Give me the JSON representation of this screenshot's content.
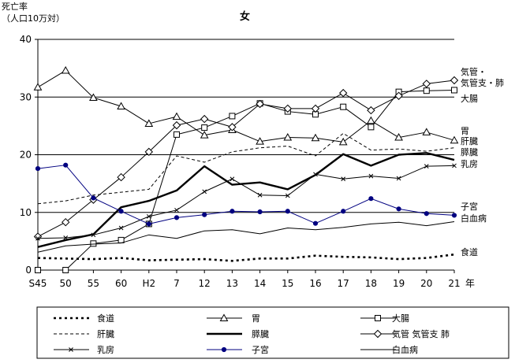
{
  "chart_data": {
    "type": "line",
    "title": "女",
    "ylabel_line1": "死亡率",
    "ylabel_line2": "（人口10万対）",
    "xlabel": "年",
    "ylim": [
      0,
      40
    ],
    "y_ticks": [
      0,
      10,
      20,
      30,
      40
    ],
    "categories": [
      "S45",
      "50",
      "55",
      "60",
      "H2",
      "7",
      "12",
      "13",
      "14",
      "15",
      "16",
      "17",
      "18",
      "19",
      "20",
      "21"
    ],
    "grid": "horizontal",
    "legend_position": "bottom",
    "series": [
      {
        "name": "食道",
        "end_label": "食道",
        "color": "#000000",
        "style": "dotted-bold",
        "marker": "none",
        "values": [
          2.1,
          2.0,
          1.9,
          2.1,
          1.7,
          1.8,
          1.9,
          1.6,
          2.0,
          2.0,
          2.5,
          2.3,
          2.2,
          1.9,
          2.1,
          2.7
        ]
      },
      {
        "name": "胃",
        "end_label": "胃",
        "color": "#000000",
        "style": "solid-thin",
        "marker": "triangle",
        "values": [
          31.7,
          34.6,
          29.9,
          28.4,
          25.4,
          26.6,
          23.4,
          24.3,
          22.3,
          23.0,
          22.9,
          22.2,
          25.9,
          23.0,
          23.9,
          22.5
        ]
      },
      {
        "name": "大腸",
        "end_label": "大腸",
        "color": "#000000",
        "style": "solid-thin",
        "marker": "square",
        "values": [
          0.0,
          0.0,
          4.6,
          5.2,
          8.0,
          23.5,
          24.7,
          26.7,
          28.9,
          27.5,
          27.0,
          28.3,
          24.8,
          30.9,
          31.1,
          31.2
        ]
      },
      {
        "name": "肝臓",
        "end_label": "肝臓",
        "color": "#000000",
        "style": "dashed",
        "marker": "none",
        "values": [
          11.5,
          12.0,
          13.0,
          13.5,
          14.0,
          19.8,
          18.7,
          20.5,
          21.2,
          21.5,
          19.8,
          23.7,
          20.8,
          21.0,
          20.6,
          21.2
        ]
      },
      {
        "name": "膵臓",
        "end_label": "膵臓",
        "color": "#000000",
        "style": "solid-bold",
        "marker": "none",
        "values": [
          4.0,
          5.2,
          6.2,
          10.9,
          12.0,
          13.8,
          18.0,
          14.8,
          15.2,
          14.0,
          16.5,
          20.1,
          18.1,
          20.0,
          20.3,
          19.1
        ]
      },
      {
        "name": "気管 気管支 肺",
        "end_label": "気管・気管支・肺",
        "color": "#000000",
        "style": "solid-thin",
        "marker": "diamond",
        "values": [
          5.8,
          8.3,
          12.2,
          16.1,
          20.5,
          25.1,
          26.2,
          24.8,
          28.8,
          28.0,
          28.0,
          30.7,
          27.7,
          30.2,
          32.3,
          32.9
        ]
      },
      {
        "name": "乳房",
        "end_label": "乳房",
        "color": "#000000",
        "style": "solid-thin",
        "marker": "x",
        "values": [
          5.5,
          5.6,
          6.1,
          7.3,
          9.3,
          10.4,
          13.6,
          15.8,
          13.0,
          12.9,
          16.6,
          15.8,
          16.3,
          15.9,
          18.0,
          18.1
        ]
      },
      {
        "name": "子宮",
        "end_label": "子宮",
        "color": "#000080",
        "style": "solid-thin",
        "marker": "dot",
        "values": [
          17.6,
          18.2,
          12.5,
          10.2,
          8.0,
          9.1,
          9.6,
          10.2,
          10.1,
          10.2,
          8.1,
          10.2,
          12.4,
          10.6,
          9.8,
          9.5
        ]
      },
      {
        "name": "白血病",
        "end_label": "白血病",
        "color": "#000000",
        "style": "solid-thin",
        "marker": "none",
        "values": [
          3.1,
          4.2,
          4.5,
          4.7,
          6.1,
          5.5,
          6.8,
          7.0,
          6.3,
          7.3,
          7.0,
          7.4,
          8.0,
          8.3,
          7.7,
          8.4
        ]
      }
    ]
  }
}
